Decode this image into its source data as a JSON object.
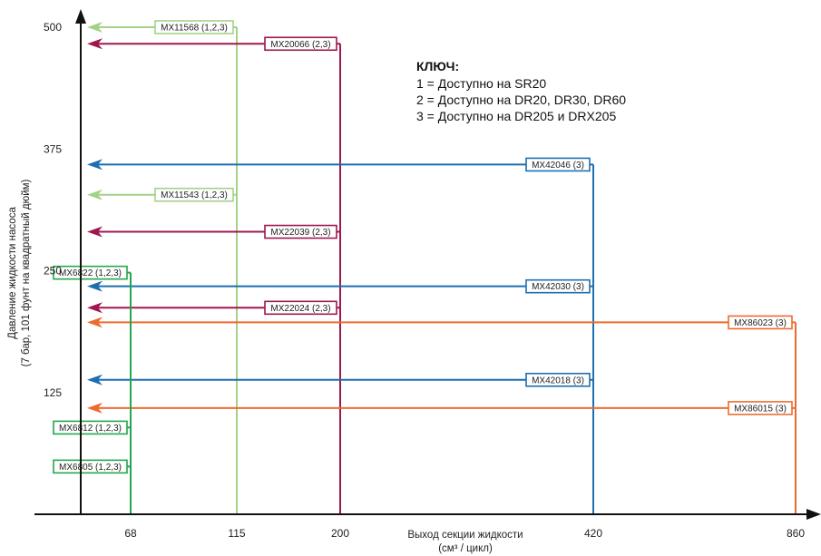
{
  "chart_data": {
    "type": "line",
    "title": "",
    "xlabel_lines": [
      "Выход секции жидкости",
      "(см³ / цикл)"
    ],
    "ylabel_lines": [
      "Давление жидкости насоса",
      "(7 бар, 101 фунт на квадратный дюйм)"
    ],
    "x_ticks": [
      68,
      115,
      200,
      420,
      860
    ],
    "y_ticks": [
      125,
      250,
      375,
      500
    ],
    "ylim": [
      0,
      500
    ],
    "grid": false,
    "key": {
      "title": "КЛЮЧ:",
      "lines": [
        "1 = Доступно на SR20",
        "2 = Доступно на DR20, DR30, DR60",
        "3 = Доступно на DR205 и DRX205"
      ]
    },
    "colors": {
      "light_green": "#a3d287",
      "green": "#22a74d",
      "maroon": "#a0174f",
      "blue": "#1f6eaf",
      "orange": "#ef6a2e",
      "axis": "#111111"
    },
    "series": [
      {
        "name": "MX11568 (1,2,3)",
        "x": 115,
        "y": 500,
        "color": "light_green"
      },
      {
        "name": "MX11543 (1,2,3)",
        "x": 115,
        "y": 328,
        "color": "light_green"
      },
      {
        "name": "MX20066 (2,3)",
        "x": 200,
        "y": 483,
        "color": "maroon"
      },
      {
        "name": "MX22039 (2,3)",
        "x": 200,
        "y": 290,
        "color": "maroon"
      },
      {
        "name": "MX22024 (2,3)",
        "x": 200,
        "y": 212,
        "color": "maroon"
      },
      {
        "name": "MX42046 (3)",
        "x": 420,
        "y": 359,
        "color": "blue"
      },
      {
        "name": "MX42030 (3)",
        "x": 420,
        "y": 234,
        "color": "blue"
      },
      {
        "name": "MX42018 (3)",
        "x": 420,
        "y": 138,
        "color": "blue"
      },
      {
        "name": "MX86023 (3)",
        "x": 860,
        "y": 197,
        "color": "orange"
      },
      {
        "name": "MX86015 (3)",
        "x": 860,
        "y": 109,
        "color": "orange"
      },
      {
        "name": "MX6822 (1,2,3)",
        "x": 68,
        "y": 248,
        "color": "green"
      },
      {
        "name": "MX6812 (1,2,3)",
        "x": 68,
        "y": 89,
        "color": "green"
      },
      {
        "name": "MX6805 (1,2,3)",
        "x": 68,
        "y": 49,
        "color": "green"
      }
    ]
  }
}
